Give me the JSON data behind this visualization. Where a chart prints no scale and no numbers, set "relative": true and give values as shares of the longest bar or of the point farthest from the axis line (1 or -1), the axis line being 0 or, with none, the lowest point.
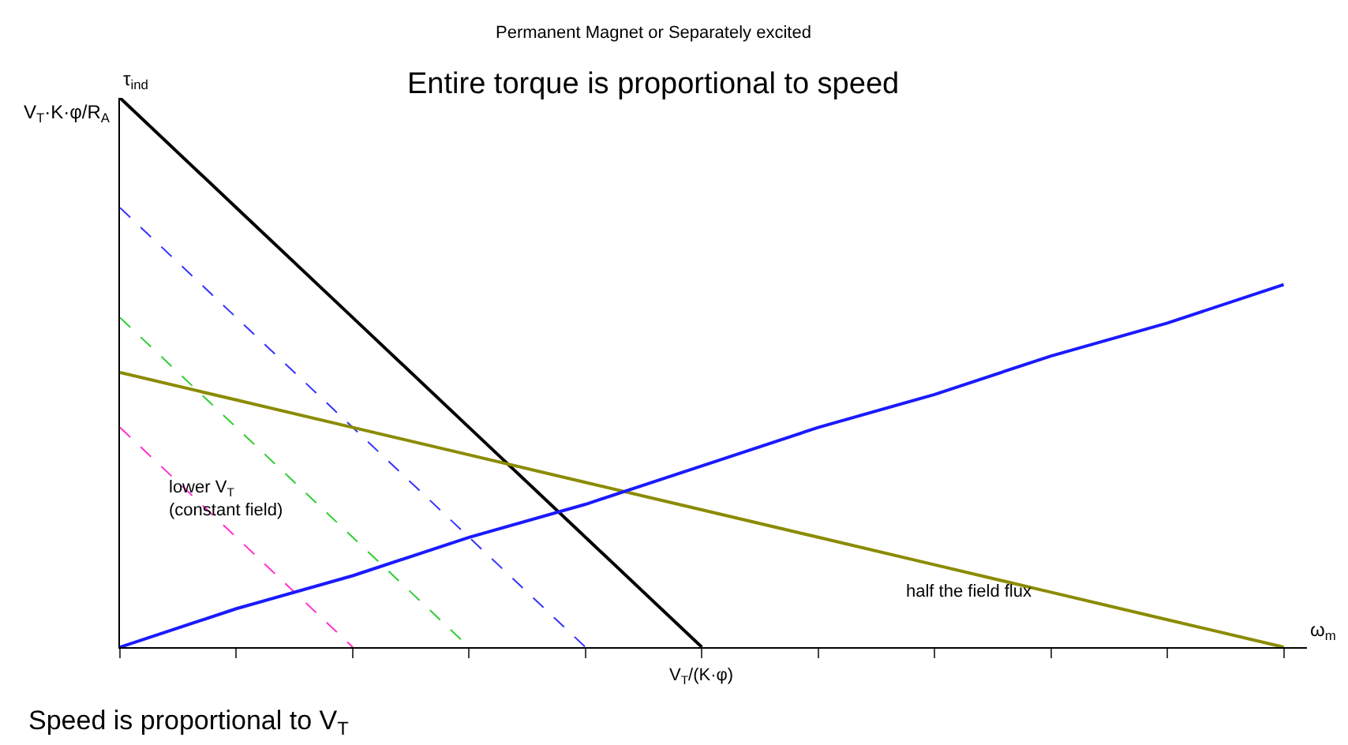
{
  "chart_data": {
    "type": "line",
    "relative": true,
    "title": "Entire torque is proportional to speed",
    "subtitle": "Permanent Magnet or Separately excited",
    "xlabel": "ω$_{m}$",
    "ylabel": "τ$_{ind}$",
    "categories": [
      null,
      null,
      null,
      null,
      null,
      null,
      null,
      null,
      null,
      null,
      null
    ],
    "series": [
      {
        "color": "#000000",
        "line_style": "solid",
        "values": [
          1,
          0.8,
          0.6,
          0.4,
          0.2,
          0,
          null,
          null,
          null,
          null,
          null
        ]
      },
      {
        "color": "#3333ff",
        "line_style": "dashed",
        "values": [
          0.8,
          0.6,
          0.4,
          0.2,
          0,
          null,
          null,
          null,
          null,
          null,
          null
        ]
      },
      {
        "color": "#33cc33",
        "line_style": "dashed",
        "values": [
          0.6,
          0.4,
          0.2,
          0,
          null,
          null,
          null,
          null,
          null,
          null,
          null
        ]
      },
      {
        "color": "#ff33cc",
        "line_style": "dashed",
        "values": [
          0.4,
          0.2,
          0,
          null,
          null,
          null,
          null,
          null,
          null,
          null,
          null
        ]
      },
      {
        "color": "#8b8b00",
        "line_style": "solid",
        "values": [
          0.5,
          0.45,
          0.4,
          0.35,
          0.3,
          0.25,
          0.2,
          0.15,
          0.1,
          0.05,
          0
        ]
      },
      {
        "color": "#1a1aff",
        "line_style": "solid",
        "values": [
          0,
          0.07,
          0.13,
          0.2,
          0.26,
          0.33,
          0.4,
          0.46,
          0.53,
          0.59,
          0.66
        ]
      }
    ],
    "annotations": [
      "V$_{T}$·K·φ/R$_{A}$",
      "lower V$_{T}$\n(constant field)",
      "half the field flux",
      "V$_{T}$/(K·φ)",
      "Speed is proportional to V$_{T}$"
    ],
    "legend": false,
    "marker": "none"
  }
}
